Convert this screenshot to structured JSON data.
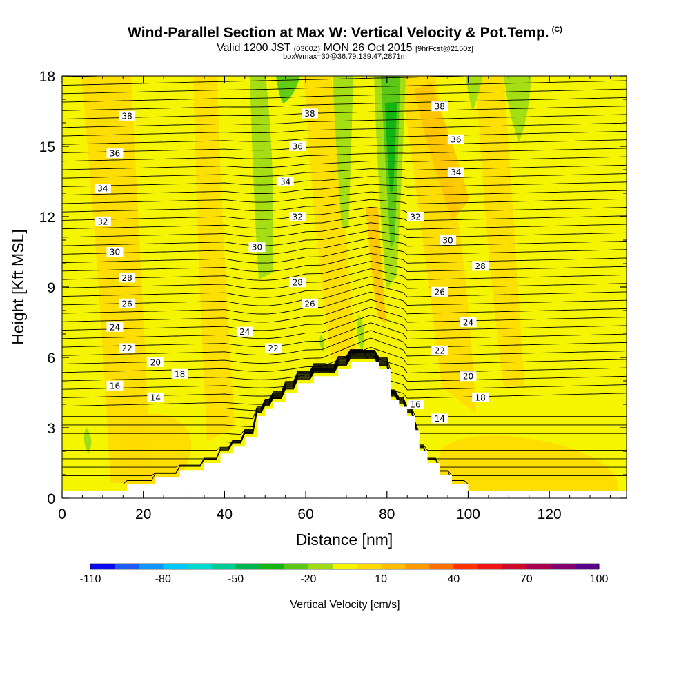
{
  "header": {
    "title": "Wind-Parallel Section at Max W: Vertical Velocity & Pot.Temp.",
    "copyright": "(C)",
    "valid_main_a": "Valid 1200 JST",
    "valid_small_a": "(0300Z)",
    "valid_main_b": "MON 26 Oct 2015",
    "valid_small_b": "[9hrFcst@2150z]",
    "box_info": "boxWmax=30@36.79,139.47,2871m"
  },
  "colors": {
    "background_fill": "#f5f500",
    "terrain": "#ffffff",
    "contour_line": "#000000",
    "colorbar": [
      "#0a0af0",
      "#1e5af5",
      "#0f96ff",
      "#00c8ff",
      "#00dcd2",
      "#00cc96",
      "#00b450",
      "#14b414",
      "#5ac814",
      "#a0dc14",
      "#f5f500",
      "#ffdc00",
      "#ffbe00",
      "#ff9b00",
      "#ff6e00",
      "#ff3200",
      "#f01414",
      "#cd0a28",
      "#aa0050",
      "#82006e",
      "#5a008c"
    ]
  },
  "chart_data": {
    "type": "heatmap",
    "title": "Wind-Parallel Section at Max W: Vertical Velocity & Pot.Temp.",
    "xlabel": "Distance [nm]",
    "ylabel": "Height [Kft MSL]",
    "xlim": [
      0,
      139
    ],
    "ylim": [
      0,
      18
    ],
    "x_ticks": [
      0,
      20,
      40,
      60,
      80,
      100,
      120
    ],
    "y_ticks": [
      0,
      3,
      6,
      9,
      12,
      15,
      18
    ],
    "terrain_profile": [
      [
        0,
        0.3
      ],
      [
        16,
        0.3
      ],
      [
        16,
        0.6
      ],
      [
        23,
        0.6
      ],
      [
        23,
        0.9
      ],
      [
        29,
        0.9
      ],
      [
        29,
        1.2
      ],
      [
        35,
        1.2
      ],
      [
        35,
        1.5
      ],
      [
        39,
        1.5
      ],
      [
        39,
        1.9
      ],
      [
        42,
        1.9
      ],
      [
        42,
        2.2
      ],
      [
        45,
        2.2
      ],
      [
        45,
        2.6
      ],
      [
        48,
        2.6
      ],
      [
        48,
        3.5
      ],
      [
        50,
        3.5
      ],
      [
        50,
        3.8
      ],
      [
        52,
        3.8
      ],
      [
        52,
        4.1
      ],
      [
        55,
        4.1
      ],
      [
        55,
        4.5
      ],
      [
        58,
        4.5
      ],
      [
        58,
        4.9
      ],
      [
        62,
        4.9
      ],
      [
        62,
        5.2
      ],
      [
        68,
        5.2
      ],
      [
        68,
        5.5
      ],
      [
        71,
        5.5
      ],
      [
        71,
        5.8
      ],
      [
        78,
        5.8
      ],
      [
        78,
        5.5
      ],
      [
        81,
        5.5
      ],
      [
        81,
        4.2
      ],
      [
        83,
        4.2
      ],
      [
        83,
        3.9
      ],
      [
        85,
        3.9
      ],
      [
        85,
        3.5
      ],
      [
        87,
        3.5
      ],
      [
        87,
        2.9
      ],
      [
        88,
        2.9
      ],
      [
        88,
        2.0
      ],
      [
        90,
        2.0
      ],
      [
        90,
        1.5
      ],
      [
        93,
        1.5
      ],
      [
        93,
        1.0
      ],
      [
        96,
        1.0
      ],
      [
        96,
        0.6
      ],
      [
        100,
        0.6
      ],
      [
        100,
        0.3
      ],
      [
        138,
        0.3
      ]
    ],
    "theta_label_positions": [
      {
        "text": "38",
        "x": 16,
        "y": 16.3
      },
      {
        "text": "36",
        "x": 13,
        "y": 14.7
      },
      {
        "text": "34",
        "x": 10,
        "y": 13.2
      },
      {
        "text": "32",
        "x": 10,
        "y": 11.8
      },
      {
        "text": "30",
        "x": 13,
        "y": 10.5
      },
      {
        "text": "28",
        "x": 16,
        "y": 9.4
      },
      {
        "text": "26",
        "x": 16,
        "y": 8.3
      },
      {
        "text": "24",
        "x": 13,
        "y": 7.3
      },
      {
        "text": "22",
        "x": 16,
        "y": 6.4
      },
      {
        "text": "20",
        "x": 23,
        "y": 5.8
      },
      {
        "text": "18",
        "x": 29,
        "y": 5.3
      },
      {
        "text": "16",
        "x": 13,
        "y": 4.8
      },
      {
        "text": "14",
        "x": 23,
        "y": 4.3
      },
      {
        "text": "38",
        "x": 61,
        "y": 16.4
      },
      {
        "text": "36",
        "x": 58,
        "y": 15.0
      },
      {
        "text": "34",
        "x": 55,
        "y": 13.5
      },
      {
        "text": "32",
        "x": 58,
        "y": 12.0
      },
      {
        "text": "30",
        "x": 48,
        "y": 10.7
      },
      {
        "text": "28",
        "x": 58,
        "y": 9.2
      },
      {
        "text": "26",
        "x": 61,
        "y": 8.3
      },
      {
        "text": "24",
        "x": 45,
        "y": 7.1
      },
      {
        "text": "22",
        "x": 52,
        "y": 6.4
      },
      {
        "text": "38",
        "x": 93,
        "y": 16.7
      },
      {
        "text": "36",
        "x": 97,
        "y": 15.3
      },
      {
        "text": "34",
        "x": 97,
        "y": 13.9
      },
      {
        "text": "32",
        "x": 87,
        "y": 12.0
      },
      {
        "text": "30",
        "x": 95,
        "y": 11.0
      },
      {
        "text": "28",
        "x": 103,
        "y": 9.9
      },
      {
        "text": "26",
        "x": 93,
        "y": 8.8
      },
      {
        "text": "24",
        "x": 100,
        "y": 7.5
      },
      {
        "text": "22",
        "x": 93,
        "y": 6.3
      },
      {
        "text": "20",
        "x": 100,
        "y": 5.2
      },
      {
        "text": "18",
        "x": 103,
        "y": 4.3
      },
      {
        "text": "16",
        "x": 87,
        "y": 4.0
      },
      {
        "text": "14",
        "x": 93,
        "y": 3.4
      }
    ],
    "colorbar": {
      "label": "Vertical Velocity [cm/s]",
      "min": -110,
      "max": 100,
      "step": 10,
      "tick_labels": [
        "-110",
        "-80",
        "-50",
        "-20",
        "10",
        "40",
        "70",
        "100"
      ],
      "tick_values": [
        -110,
        -80,
        -50,
        -20,
        10,
        40,
        70,
        100
      ]
    }
  }
}
